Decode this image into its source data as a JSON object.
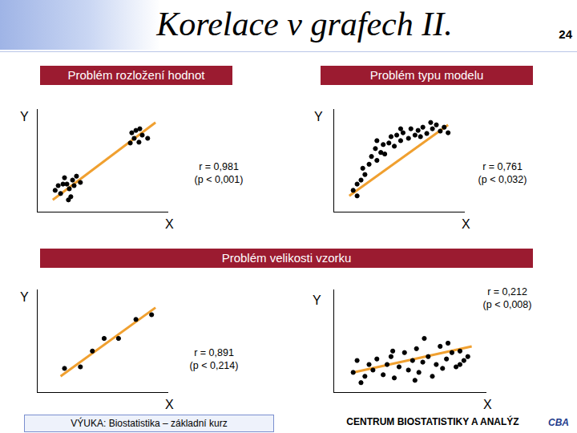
{
  "slide": {
    "title": "Korelace v grafech II.",
    "page": "24",
    "footer_left": "VÝUKA: Biostatistika – základní kurz",
    "footer_right": "CENTRUM BIOSTATISTIKY A ANALÝZ",
    "logo": "CBA"
  },
  "sections": [
    "Problém rozložení hodnot",
    "Problém typu modelu",
    "Problém velikosti vzorku"
  ],
  "chart_data": [
    {
      "type": "scatter",
      "x_label": "X",
      "y_label": "Y",
      "annotation": [
        "r = 0,981",
        "(p < 0,001)"
      ],
      "xlim": [
        0,
        6
      ],
      "ylim": [
        0,
        10
      ],
      "tick_labels": false,
      "grid": false,
      "series": [
        {
          "type": "scatter",
          "color": "#000000",
          "marker": "circle",
          "x": [
            0.84,
            1.09,
            1.27,
            1.38,
            1.49,
            1.64,
            1.71,
            1.82,
            2.0,
            1.56,
            1.2,
            0.98,
            1.45,
            4.36,
            4.55,
            4.73,
            4.47,
            4.84,
            4.29,
            4.69,
            5.09
          ],
          "values": [
            2.08,
            1.77,
            3.31,
            2.69,
            2.23,
            3.08,
            2.54,
            3.46,
            2.85,
            1.46,
            2.69,
            2.54,
            1.15,
            7.69,
            7.92,
            8.08,
            7.15,
            7.46,
            6.69,
            6.77,
            7.15
          ]
        },
        {
          "type": "line",
          "color": "#f0a030",
          "line_style": "solid",
          "x": [
            0.73,
            5.45
          ],
          "values": [
            1.15,
            8.69
          ]
        }
      ]
    },
    {
      "type": "scatter",
      "x_label": "X",
      "y_label": "Y",
      "annotation": [
        "r = 0,761",
        "(p < 0,032)"
      ],
      "xlim": [
        0,
        6
      ],
      "ylim": [
        0,
        10
      ],
      "tick_labels": false,
      "grid": false,
      "series": [
        {
          "type": "scatter",
          "color": "#000000",
          "marker": "circle",
          "x": [
            0.91,
            1.09,
            1.27,
            1.45,
            1.35,
            1.64,
            1.75,
            2.0,
            1.93,
            2.18,
            2.29,
            2.55,
            2.65,
            2.8,
            2.91,
            3.09,
            3.2,
            3.45,
            3.56,
            3.75,
            3.89,
            4.11,
            4.29,
            4.55,
            4.73,
            4.91,
            5.09,
            5.27,
            1.09,
            2.0,
            2.36,
            3.09,
            4.0,
            4.47
          ],
          "values": [
            2.08,
            2.69,
            3.08,
            3.62,
            4.23,
            4.62,
            5.38,
            5.0,
            6.15,
            5.77,
            6.54,
            6.69,
            7.31,
            6.38,
            7.46,
            6.92,
            7.69,
            7.15,
            8.08,
            7.46,
            7.92,
            8.23,
            7.62,
            8.08,
            8.46,
            7.85,
            8.23,
            7.69,
            1.54,
            6.92,
            5.62,
            8.08,
            7.31,
            8.69
          ]
        },
        {
          "type": "line",
          "color": "#f0a030",
          "line_style": "solid",
          "x": [
            0.73,
            5.27
          ],
          "values": [
            1.54,
            8.46
          ]
        }
      ]
    },
    {
      "type": "scatter",
      "x_label": "X",
      "y_label": "Y",
      "annotation": [
        "r = 0,891",
        "(p < 0,214)"
      ],
      "xlim": [
        0,
        6
      ],
      "ylim": [
        0,
        10
      ],
      "tick_labels": false,
      "grid": false,
      "series": [
        {
          "type": "scatter",
          "color": "#000000",
          "marker": "circle",
          "x": [
            1.27,
            2.0,
            2.55,
            3.09,
            3.75,
            4.55,
            5.27
          ],
          "values": [
            2.31,
            2.46,
            4.0,
            5.23,
            5.23,
            7.08,
            7.54
          ]
        },
        {
          "type": "line",
          "color": "#f0a030",
          "line_style": "solid",
          "x": [
            1.09,
            5.45
          ],
          "values": [
            1.54,
            8.23
          ]
        }
      ]
    },
    {
      "type": "scatter",
      "x_label": "X",
      "y_label": "Y",
      "annotation": [
        "r = 0,212",
        "(p < 0,008)"
      ],
      "xlim": [
        0,
        7
      ],
      "ylim": [
        0,
        10
      ],
      "tick_labels": false,
      "grid": false,
      "series": [
        {
          "type": "scatter",
          "color": "#000000",
          "marker": "circle",
          "x": [
            0.91,
            1.09,
            1.45,
            1.64,
            1.82,
            2.0,
            2.29,
            2.47,
            2.65,
            2.8,
            3.02,
            3.27,
            3.45,
            3.64,
            3.82,
            3.93,
            4.11,
            4.36,
            4.55,
            4.73,
            4.91,
            5.02,
            5.2,
            5.45,
            5.64,
            5.82,
            6.0,
            6.18,
            1.27,
            2.73,
            4.18,
            5.27,
            5.82,
            3.75
          ],
          "values": [
            1.92,
            3.08,
            1.54,
            2.69,
            2.15,
            3.23,
            1.69,
            2.69,
            3.46,
            1.38,
            2.46,
            3.85,
            2.15,
            3.08,
            4.23,
            1.92,
            2.92,
            3.46,
            1.54,
            2.69,
            4.46,
            2.31,
            3.23,
            3.85,
            2.46,
            4.0,
            3.08,
            3.46,
            0.92,
            4.0,
            5.23,
            4.77,
            2.69,
            1.15
          ]
        },
        {
          "type": "line",
          "color": "#f0a030",
          "line_style": "solid",
          "x": [
            0.91,
            6.36
          ],
          "values": [
            1.92,
            4.46
          ]
        }
      ]
    }
  ]
}
